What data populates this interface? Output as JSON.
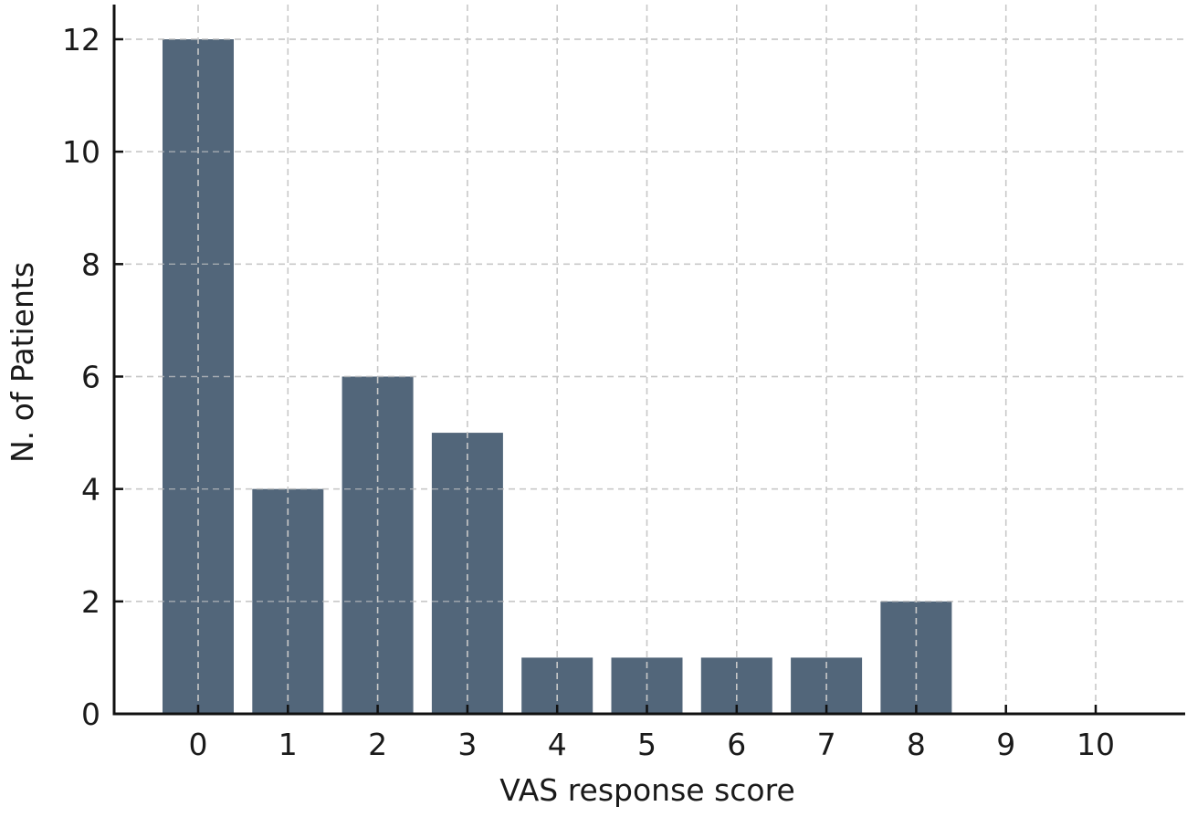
{
  "chart_data": {
    "type": "bar",
    "title": "",
    "xlabel": "VAS response score",
    "ylabel": "N. of Patients",
    "categories": [
      "0",
      "1",
      "2",
      "3",
      "4",
      "5",
      "6",
      "7",
      "8",
      "9",
      "10"
    ],
    "values": [
      12,
      4,
      6,
      5,
      1,
      1,
      1,
      1,
      2,
      0,
      0
    ],
    "yticks": [
      0,
      2,
      4,
      6,
      8,
      10,
      12
    ],
    "ylim": [
      0,
      12.6
    ],
    "grid": true,
    "legend": null,
    "bar_color": "#52667a"
  }
}
